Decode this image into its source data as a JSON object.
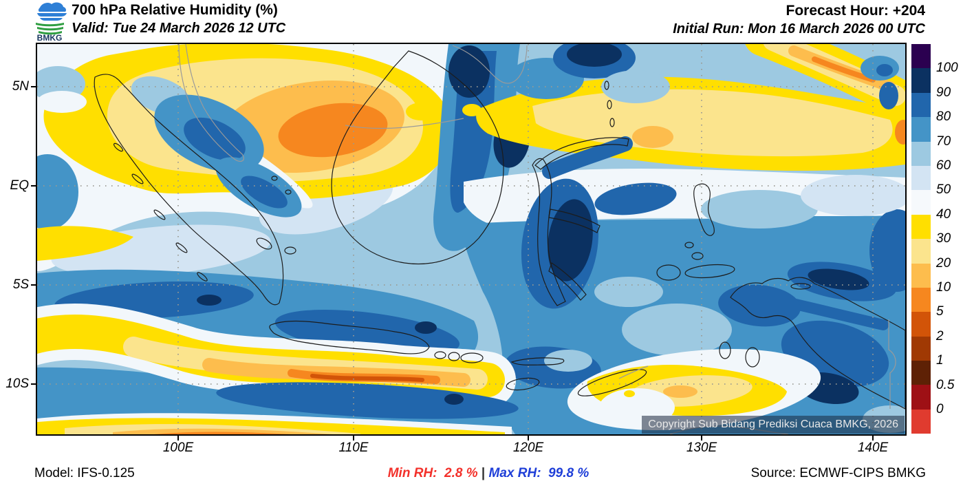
{
  "header": {
    "logo_text": "BMKG",
    "title": "700 hPa Relative Humidity (%)",
    "valid_label": "Valid: Tue 24 March 2026 12 UTC",
    "forecast_hour_label": "Forecast Hour: +204",
    "initial_run_label": "Initial Run: Mon 16 March 2026 00 UTC"
  },
  "map": {
    "copyright": "Copyright Sub Bidang Prediksi Cuaca BMKG, 2026",
    "lat_ticks": [
      "5N",
      "EQ",
      "5S",
      "10S"
    ],
    "lon_ticks": [
      "100E",
      "110E",
      "120E",
      "130E",
      "140E"
    ]
  },
  "colorbar": {
    "tick_labels": [
      "100",
      "90",
      "80",
      "70",
      "60",
      "50",
      "40",
      "30",
      "20",
      "10",
      "5",
      "2",
      "1",
      "0.5",
      "0"
    ],
    "segment_colors_top_to_bottom": [
      "#2b0050",
      "#0b3161",
      "#2166ac",
      "#4494c7",
      "#9dc9e1",
      "#d3e4f3",
      "#f6f9fc",
      "#ffdf00",
      "#fbe48d",
      "#fdbd4d",
      "#f6871f",
      "#d25408",
      "#a03903",
      "#5e2105",
      "#9e1015",
      "#e03b2f"
    ]
  },
  "footer": {
    "model_label": "Model: IFS-0.125",
    "min_rh_label": "Min RH:  2.8 %",
    "separator": "|",
    "max_rh_label": "Max RH:  99.8 %",
    "source_label": "Source: ECMWF-CIPS BMKG"
  },
  "chart_data": {
    "type": "heatmap",
    "title": "700 hPa Relative Humidity (%)",
    "units": "%",
    "valid_time": "Tue 24 March 2026 12 UTC",
    "forecast_hour": "+204",
    "initial_run": "Mon 16 March 2026 00 UTC",
    "model": "IFS-0.125",
    "source": "ECMWF-CIPS BMKG",
    "min_value": 2.8,
    "max_value": 99.8,
    "x_axis": {
      "ticks": [
        "100E",
        "110E",
        "120E",
        "130E",
        "140E"
      ],
      "approx_range": [
        "92E",
        "142E"
      ]
    },
    "y_axis": {
      "ticks": [
        "5N",
        "EQ",
        "5S",
        "10S"
      ],
      "approx_range": [
        "7N",
        "12.5S"
      ]
    },
    "contour_levels": [
      0,
      0.5,
      1,
      2,
      5,
      10,
      20,
      30,
      40,
      50,
      60,
      70,
      80,
      90,
      100
    ],
    "palette_low_to_high": [
      "#e03b2f",
      "#9e1015",
      "#5e2105",
      "#a03903",
      "#d25408",
      "#f6871f",
      "#fdbd4d",
      "#fbe48d",
      "#ffdf00",
      "#f6f9fc",
      "#d3e4f3",
      "#9dc9e1",
      "#4494c7",
      "#2166ac",
      "#0b3161",
      "#2b0050"
    ],
    "grid": "dotted gray graticule at labeled ticks",
    "notable_features": [
      "Very dry band (RH 2-20%) stretching west-to-east south of Java near 8S",
      "Dry region (RH 5-40%) over the Malay Peninsula and northwest Borneo",
      "Dry yellow bands north of the equator between 110E and 142E",
      "Very moist air (RH 80-100%) over central Sulawesi, north Maluku and Papua",
      "Moist blue band along 4S-6S west of 105E and over the Banda/Arafura seas",
      "Dry yellow patch around Timor near 10S 125E"
    ]
  }
}
